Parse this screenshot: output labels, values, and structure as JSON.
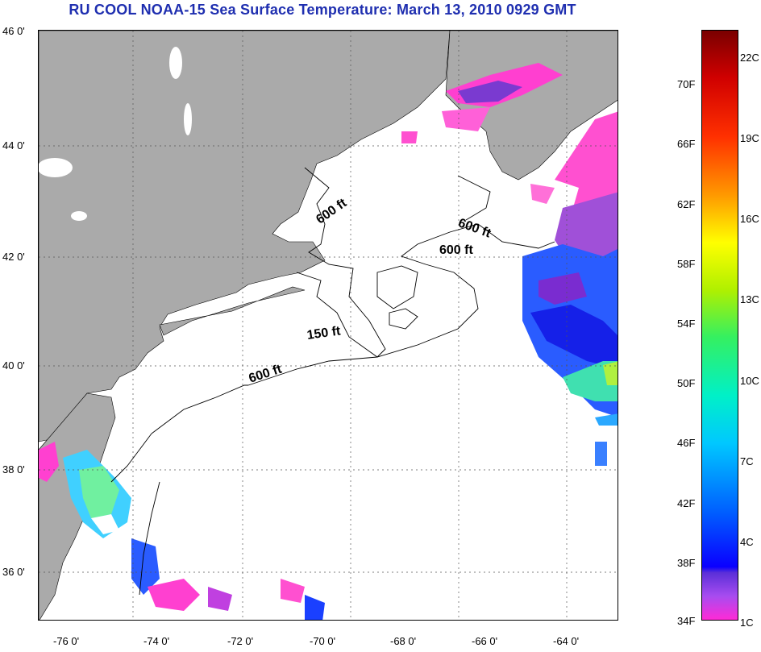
{
  "title": "RU COOL  NOAA-15  Sea Surface Temperature:  March 13, 2010 0929 GMT",
  "map": {
    "lat_labels": [
      "46 0'",
      "44 0'",
      "42 0'",
      "40 0'",
      "38 0'",
      "36 0'"
    ],
    "lon_labels": [
      "-76 0'",
      "-74 0'",
      "-72 0'",
      "-70 0'",
      "-68 0'",
      "-66 0'",
      "-64 0'"
    ],
    "contours": {
      "a": "600 ft",
      "b": "600 ft",
      "c": "600 ft",
      "d": "150 ft",
      "e": "600 ft"
    },
    "colors": {
      "land": "#aaaaaa",
      "sea": "#ffffff",
      "grid": "#555555"
    }
  },
  "colorbar": {
    "fahrenheit": [
      "70F",
      "66F",
      "62F",
      "58F",
      "54F",
      "50F",
      "46F",
      "42F",
      "38F",
      "34F"
    ],
    "celsius": [
      "22C",
      "19C",
      "16C",
      "13C",
      "10C",
      "7C",
      "4C",
      "1C"
    ]
  }
}
